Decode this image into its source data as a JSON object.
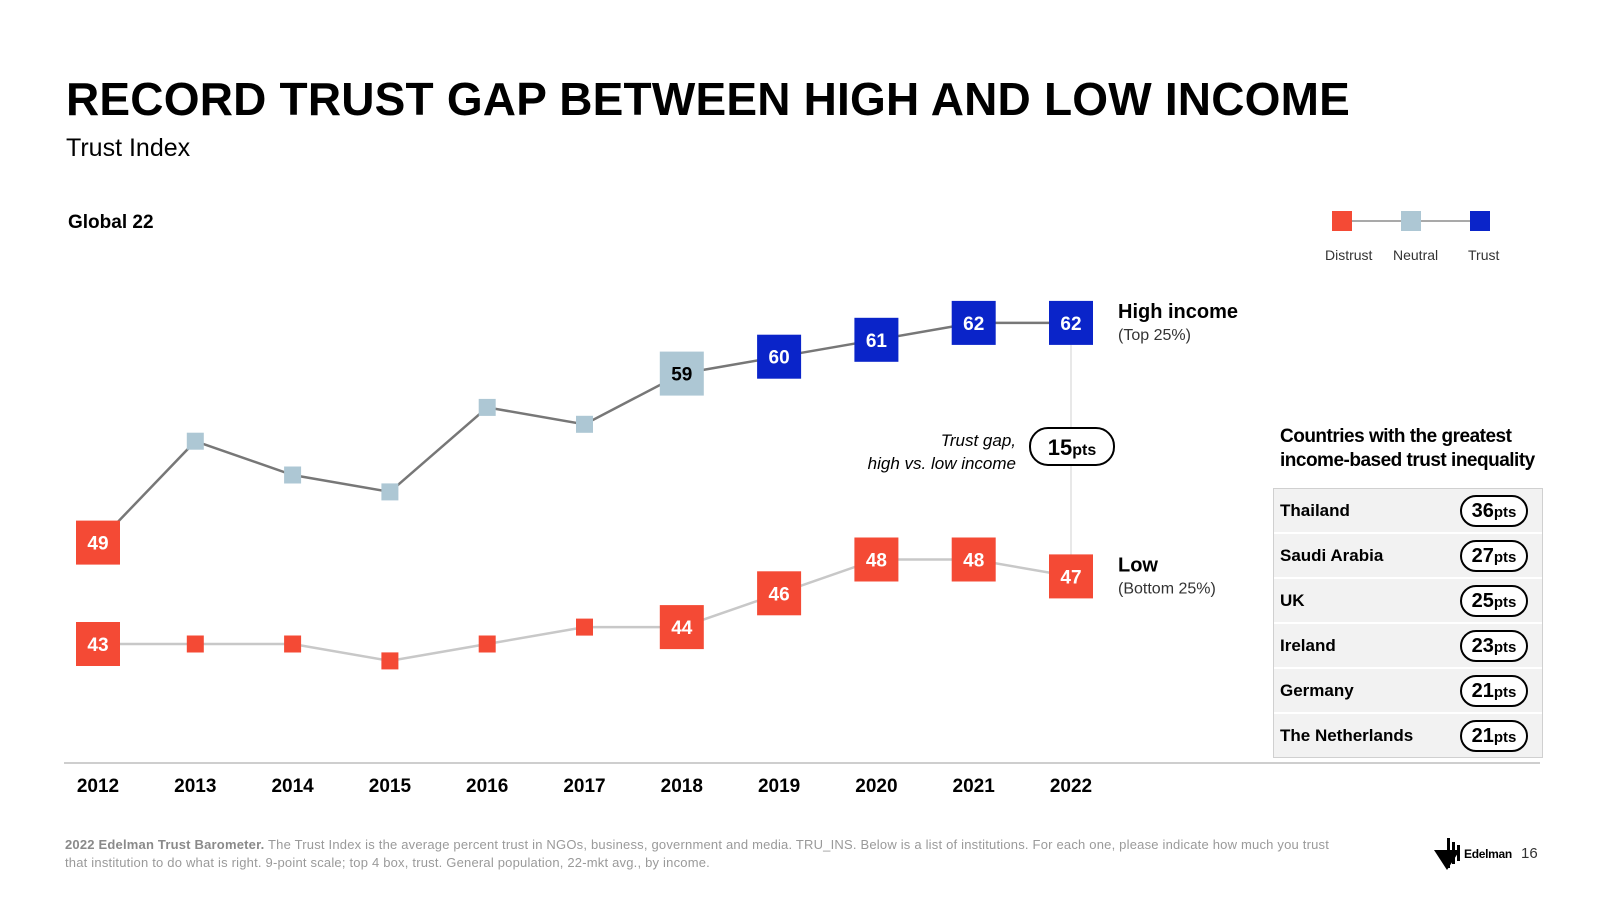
{
  "header": {
    "title": "RECORD TRUST GAP BETWEEN HIGH AND LOW INCOME",
    "subtitle": "Trust Index",
    "chart_label": "Global 22"
  },
  "legend": {
    "items": [
      {
        "label": "Distrust",
        "color": "#f44a35"
      },
      {
        "label": "Neutral",
        "color": "#adc7d4"
      },
      {
        "label": "Trust",
        "color": "#0a24c9"
      }
    ]
  },
  "chart_data": {
    "type": "line",
    "x": [
      "2012",
      "2013",
      "2014",
      "2015",
      "2016",
      "2017",
      "2018",
      "2019",
      "2020",
      "2021",
      "2022"
    ],
    "ylim": [
      40,
      65
    ],
    "series": [
      {
        "name": "High income",
        "sublabel": "(Top 25%)",
        "values": [
          49,
          55,
          53,
          52,
          57,
          56,
          59,
          60,
          61,
          62,
          62
        ],
        "labeled": [
          true,
          false,
          false,
          false,
          false,
          false,
          true,
          true,
          true,
          true,
          true
        ],
        "line_color": "#777777"
      },
      {
        "name": "Low",
        "sublabel": "(Bottom 25%)",
        "values": [
          43,
          43,
          43,
          42,
          43,
          44,
          44,
          46,
          48,
          48,
          47
        ],
        "labeled": [
          true,
          false,
          false,
          false,
          false,
          false,
          true,
          true,
          true,
          true,
          true
        ],
        "line_color": "#c8c8c8"
      }
    ],
    "color_scale": {
      "distrust_max": 49,
      "neutral_max": 59,
      "distrust": "#f44a35",
      "neutral": "#adc7d4",
      "trust": "#0a24c9"
    },
    "gap": {
      "label_line1": "Trust gap,",
      "label_line2": "high vs. low income",
      "value": "15",
      "unit": "pts"
    }
  },
  "countries": {
    "title_line1": "Countries with the greatest",
    "title_line2": "income-based trust inequality",
    "rows": [
      {
        "name": "Thailand",
        "value": "36",
        "unit": "pts"
      },
      {
        "name": "Saudi Arabia",
        "value": "27",
        "unit": "pts"
      },
      {
        "name": "UK",
        "value": "25",
        "unit": "pts"
      },
      {
        "name": "Ireland",
        "value": "23",
        "unit": "pts"
      },
      {
        "name": "Germany",
        "value": "21",
        "unit": "pts"
      },
      {
        "name": "The Netherlands",
        "value": "21",
        "unit": "pts"
      }
    ]
  },
  "footer": {
    "bold": "2022 Edelman Trust Barometer.",
    "text": " The Trust Index is the average percent trust in NGOs, business, government and media. TRU_INS. Below is a list of institutions. For each one, please indicate how much you trust that institution to do what is right. 9-point scale; top 4 box, trust. General population, 22-mkt avg., by income.",
    "logo_text": "Edelman",
    "page_number": "16"
  }
}
